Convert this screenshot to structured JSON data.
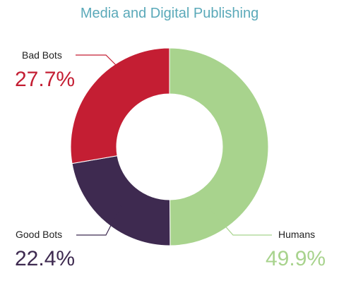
{
  "chart_data": {
    "type": "pie",
    "title": "Media and Digital Publishing",
    "donut": true,
    "categories": [
      "Humans",
      "Good Bots",
      "Bad Bots"
    ],
    "values": [
      49.9,
      22.4,
      27.7
    ],
    "value_labels": [
      "49.9%",
      "22.4%",
      "27.7%"
    ],
    "colors": [
      "#a8d38d",
      "#3e2a50",
      "#c41e33"
    ],
    "title_color": "#5aa9b9",
    "start": "12 o'clock, clockwise"
  }
}
